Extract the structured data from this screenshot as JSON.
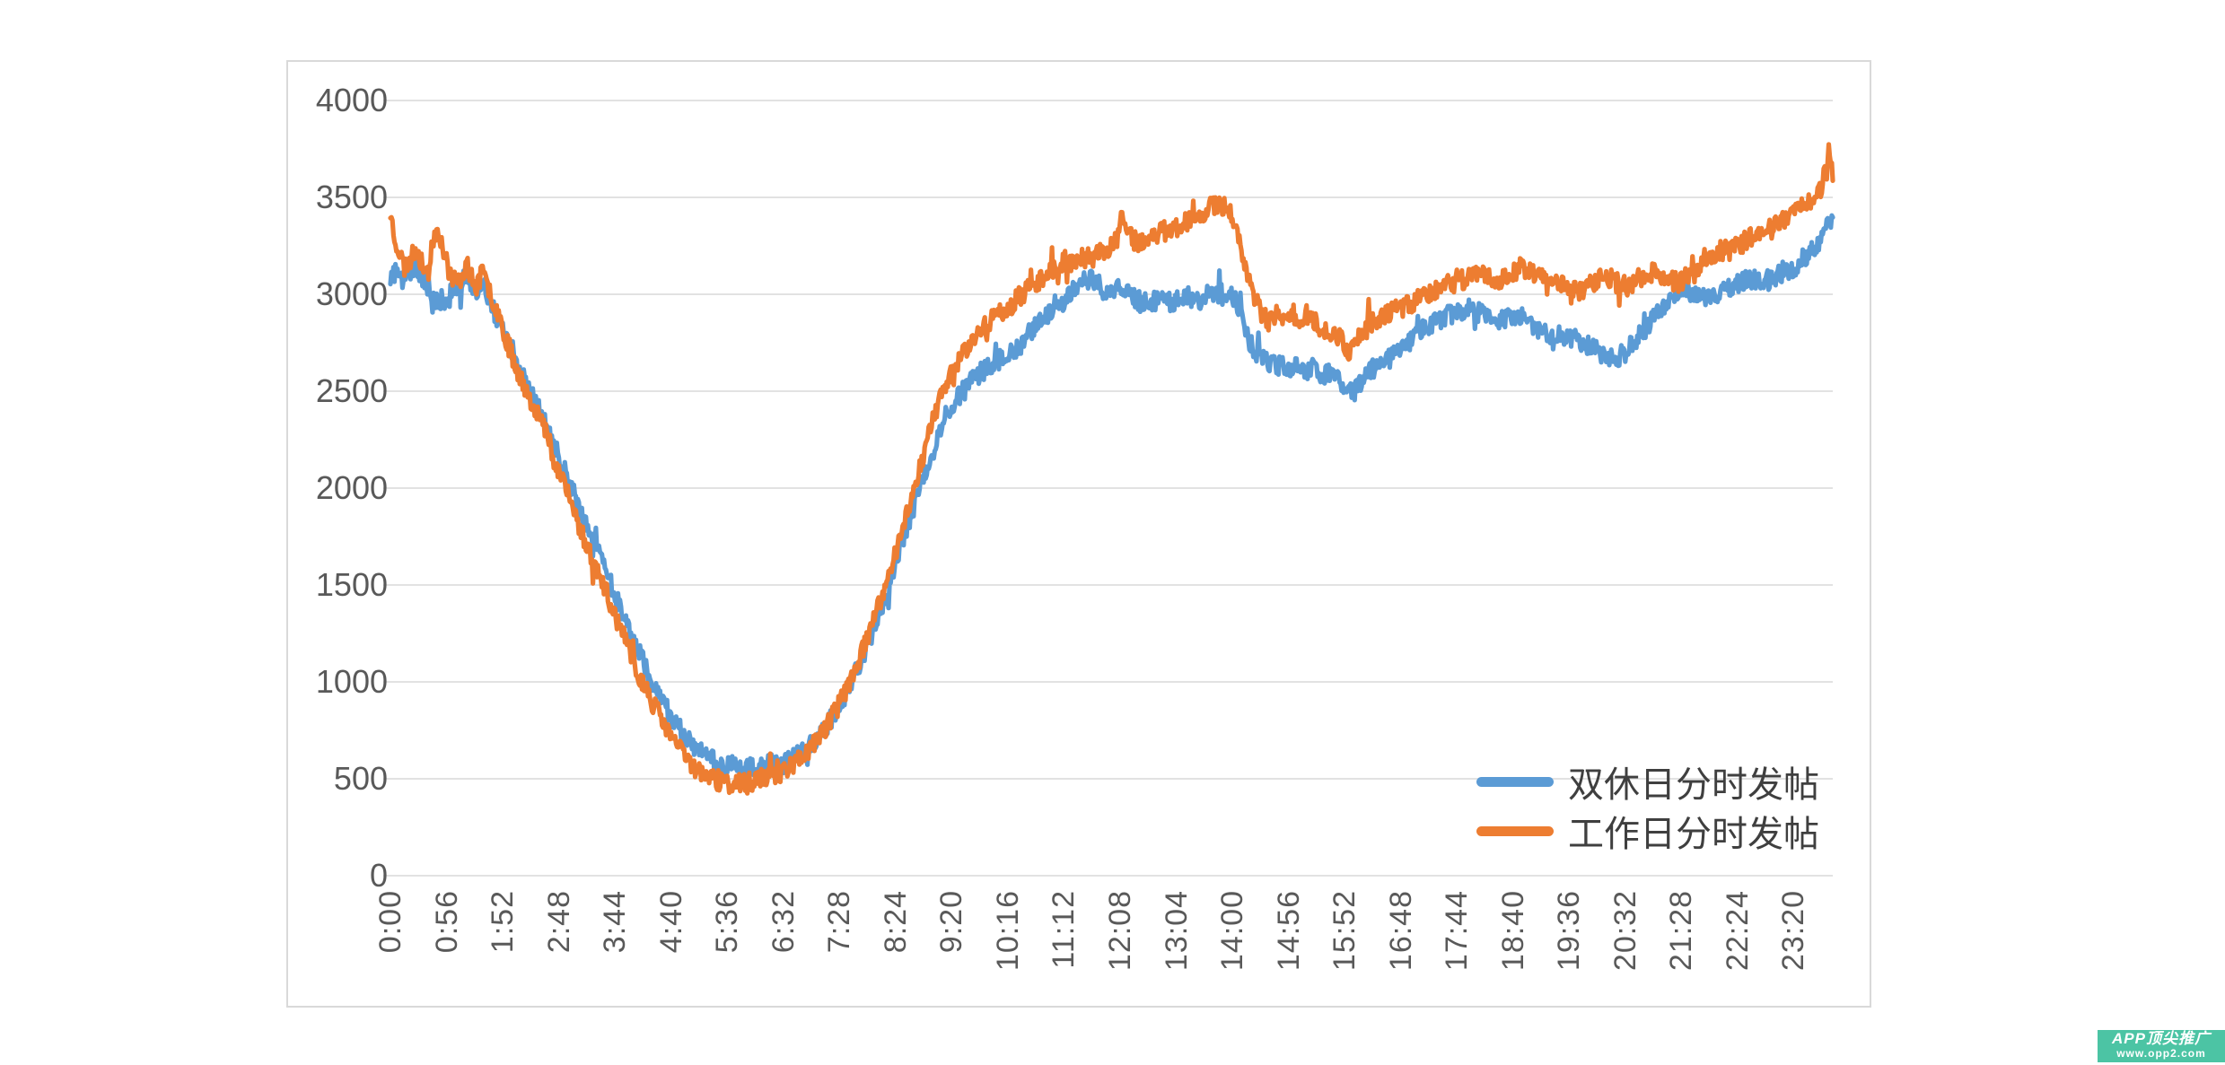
{
  "chart_data": {
    "type": "line",
    "title": "",
    "x_axis": {
      "unit": "time-of-day (minute resolution, 0:00 - 23:59)",
      "tick_interval_minutes": 56,
      "range_minutes": [
        0,
        1439
      ],
      "tick_labels": [
        "0:00",
        "0:56",
        "1:52",
        "2:48",
        "3:44",
        "4:40",
        "5:36",
        "6:32",
        "7:28",
        "8:24",
        "9:20",
        "10:16",
        "11:12",
        "12:08",
        "13:04",
        "14:00",
        "14:56",
        "15:52",
        "16:48",
        "17:44",
        "18:40",
        "19:36",
        "20:32",
        "21:28",
        "22:24",
        "23:20"
      ]
    },
    "y_axis": {
      "range": [
        0,
        4000
      ],
      "ticks": [
        0,
        500,
        1000,
        1500,
        2000,
        2500,
        3000,
        3500,
        4000
      ]
    },
    "grid": "horizontal",
    "legend_position": "inside-bottom-right",
    "sampling_note": "per-minute noisy data; anchors below trace the trend read from the image, noise_amplitude is the observed minute-to-minute jitter",
    "series": [
      {
        "name": "双休日分时发帖",
        "color": "#5B9BD5",
        "seed": 9,
        "noise_amplitude": 52,
        "anchors": [
          [
            0,
            3080
          ],
          [
            6,
            3120
          ],
          [
            12,
            3060
          ],
          [
            18,
            3110
          ],
          [
            24,
            3140
          ],
          [
            30,
            3080
          ],
          [
            36,
            3060
          ],
          [
            42,
            3000
          ],
          [
            48,
            2960
          ],
          [
            54,
            2920
          ],
          [
            60,
            3000
          ],
          [
            68,
            3060
          ],
          [
            76,
            3100
          ],
          [
            84,
            3020
          ],
          [
            92,
            3060
          ],
          [
            100,
            2960
          ],
          [
            108,
            2860
          ],
          [
            116,
            2760
          ],
          [
            126,
            2640
          ],
          [
            136,
            2530
          ],
          [
            146,
            2440
          ],
          [
            156,
            2330
          ],
          [
            166,
            2190
          ],
          [
            176,
            2060
          ],
          [
            186,
            1930
          ],
          [
            196,
            1800
          ],
          [
            208,
            1660
          ],
          [
            220,
            1500
          ],
          [
            232,
            1340
          ],
          [
            244,
            1190
          ],
          [
            256,
            1060
          ],
          [
            268,
            930
          ],
          [
            280,
            820
          ],
          [
            292,
            730
          ],
          [
            304,
            660
          ],
          [
            316,
            610
          ],
          [
            328,
            580
          ],
          [
            340,
            565
          ],
          [
            352,
            550
          ],
          [
            364,
            560
          ],
          [
            376,
            575
          ],
          [
            388,
            570
          ],
          [
            400,
            600
          ],
          [
            412,
            640
          ],
          [
            424,
            700
          ],
          [
            436,
            780
          ],
          [
            448,
            880
          ],
          [
            460,
            1000
          ],
          [
            472,
            1140
          ],
          [
            484,
            1300
          ],
          [
            496,
            1480
          ],
          [
            508,
            1670
          ],
          [
            520,
            1870
          ],
          [
            532,
            2060
          ],
          [
            544,
            2230
          ],
          [
            556,
            2380
          ],
          [
            568,
            2480
          ],
          [
            580,
            2550
          ],
          [
            592,
            2610
          ],
          [
            604,
            2650
          ],
          [
            616,
            2680
          ],
          [
            628,
            2740
          ],
          [
            640,
            2810
          ],
          [
            652,
            2870
          ],
          [
            664,
            2930
          ],
          [
            672,
            2970
          ],
          [
            684,
            3040
          ],
          [
            692,
            3070
          ],
          [
            700,
            3080
          ],
          [
            710,
            3030
          ],
          [
            720,
            3000
          ],
          [
            728,
            3050
          ],
          [
            738,
            3010
          ],
          [
            748,
            2960
          ],
          [
            758,
            2950
          ],
          [
            768,
            2990
          ],
          [
            778,
            2960
          ],
          [
            784,
            2970
          ],
          [
            794,
            3010
          ],
          [
            804,
            2960
          ],
          [
            814,
            2990
          ],
          [
            824,
            3010
          ],
          [
            834,
            2990
          ],
          [
            840,
            3000
          ],
          [
            848,
            2890
          ],
          [
            856,
            2770
          ],
          [
            864,
            2700
          ],
          [
            872,
            2660
          ],
          [
            880,
            2630
          ],
          [
            888,
            2640
          ],
          [
            896,
            2620
          ],
          [
            904,
            2650
          ],
          [
            912,
            2600
          ],
          [
            920,
            2630
          ],
          [
            928,
            2570
          ],
          [
            936,
            2600
          ],
          [
            944,
            2560
          ],
          [
            952,
            2530
          ],
          [
            960,
            2490
          ],
          [
            968,
            2550
          ],
          [
            976,
            2600
          ],
          [
            984,
            2630
          ],
          [
            992,
            2660
          ],
          [
            1000,
            2680
          ],
          [
            1008,
            2700
          ],
          [
            1020,
            2770
          ],
          [
            1032,
            2830
          ],
          [
            1044,
            2870
          ],
          [
            1056,
            2890
          ],
          [
            1064,
            2910
          ],
          [
            1076,
            2930
          ],
          [
            1088,
            2900
          ],
          [
            1100,
            2870
          ],
          [
            1112,
            2880
          ],
          [
            1120,
            2900
          ],
          [
            1132,
            2870
          ],
          [
            1144,
            2830
          ],
          [
            1156,
            2800
          ],
          [
            1168,
            2790
          ],
          [
            1176,
            2780
          ],
          [
            1188,
            2750
          ],
          [
            1200,
            2720
          ],
          [
            1212,
            2690
          ],
          [
            1224,
            2670
          ],
          [
            1232,
            2700
          ],
          [
            1244,
            2770
          ],
          [
            1256,
            2850
          ],
          [
            1268,
            2930
          ],
          [
            1280,
            3000
          ],
          [
            1288,
            3040
          ],
          [
            1300,
            3010
          ],
          [
            1312,
            2980
          ],
          [
            1324,
            3010
          ],
          [
            1336,
            3030
          ],
          [
            1344,
            3050
          ],
          [
            1356,
            3080
          ],
          [
            1368,
            3060
          ],
          [
            1380,
            3090
          ],
          [
            1392,
            3120
          ],
          [
            1400,
            3140
          ],
          [
            1410,
            3190
          ],
          [
            1420,
            3240
          ],
          [
            1428,
            3290
          ],
          [
            1434,
            3350
          ],
          [
            1439,
            3400
          ]
        ]
      },
      {
        "name": "工作日分时发帖",
        "color": "#ED7D31",
        "seed": 23,
        "noise_amplitude": 52,
        "anchors": [
          [
            0,
            3420
          ],
          [
            4,
            3300
          ],
          [
            8,
            3230
          ],
          [
            14,
            3140
          ],
          [
            20,
            3180
          ],
          [
            26,
            3240
          ],
          [
            32,
            3150
          ],
          [
            38,
            3120
          ],
          [
            44,
            3320
          ],
          [
            48,
            3340
          ],
          [
            54,
            3200
          ],
          [
            60,
            3100
          ],
          [
            68,
            3060
          ],
          [
            76,
            3160
          ],
          [
            84,
            3030
          ],
          [
            92,
            3110
          ],
          [
            100,
            3000
          ],
          [
            108,
            2900
          ],
          [
            116,
            2760
          ],
          [
            126,
            2620
          ],
          [
            136,
            2500
          ],
          [
            146,
            2400
          ],
          [
            156,
            2280
          ],
          [
            166,
            2120
          ],
          [
            176,
            1980
          ],
          [
            186,
            1840
          ],
          [
            196,
            1700
          ],
          [
            208,
            1560
          ],
          [
            220,
            1400
          ],
          [
            232,
            1240
          ],
          [
            244,
            1080
          ],
          [
            256,
            950
          ],
          [
            268,
            830
          ],
          [
            280,
            720
          ],
          [
            292,
            630
          ],
          [
            304,
            560
          ],
          [
            316,
            510
          ],
          [
            328,
            490
          ],
          [
            340,
            475
          ],
          [
            352,
            470
          ],
          [
            364,
            490
          ],
          [
            376,
            510
          ],
          [
            388,
            530
          ],
          [
            400,
            570
          ],
          [
            412,
            620
          ],
          [
            424,
            690
          ],
          [
            436,
            780
          ],
          [
            448,
            890
          ],
          [
            460,
            1020
          ],
          [
            472,
            1170
          ],
          [
            484,
            1340
          ],
          [
            496,
            1530
          ],
          [
            508,
            1740
          ],
          [
            520,
            1960
          ],
          [
            532,
            2180
          ],
          [
            544,
            2400
          ],
          [
            556,
            2550
          ],
          [
            568,
            2680
          ],
          [
            580,
            2760
          ],
          [
            592,
            2830
          ],
          [
            604,
            2890
          ],
          [
            616,
            2930
          ],
          [
            630,
            3000
          ],
          [
            644,
            3060
          ],
          [
            658,
            3130
          ],
          [
            672,
            3160
          ],
          [
            686,
            3180
          ],
          [
            700,
            3190
          ],
          [
            714,
            3230
          ],
          [
            726,
            3290
          ],
          [
            731,
            3430
          ],
          [
            736,
            3310
          ],
          [
            746,
            3260
          ],
          [
            756,
            3290
          ],
          [
            768,
            3320
          ],
          [
            780,
            3340
          ],
          [
            792,
            3370
          ],
          [
            804,
            3400
          ],
          [
            816,
            3440
          ],
          [
            826,
            3465
          ],
          [
            836,
            3440
          ],
          [
            842,
            3390
          ],
          [
            848,
            3260
          ],
          [
            854,
            3120
          ],
          [
            860,
            3010
          ],
          [
            868,
            2910
          ],
          [
            876,
            2850
          ],
          [
            884,
            2890
          ],
          [
            892,
            2860
          ],
          [
            900,
            2900
          ],
          [
            908,
            2870
          ],
          [
            916,
            2900
          ],
          [
            924,
            2850
          ],
          [
            932,
            2820
          ],
          [
            940,
            2790
          ],
          [
            948,
            2770
          ],
          [
            956,
            2710
          ],
          [
            962,
            2760
          ],
          [
            970,
            2800
          ],
          [
            978,
            2850
          ],
          [
            986,
            2880
          ],
          [
            996,
            2900
          ],
          [
            1008,
            2930
          ],
          [
            1020,
            2960
          ],
          [
            1032,
            3000
          ],
          [
            1044,
            3030
          ],
          [
            1056,
            3050
          ],
          [
            1064,
            3060
          ],
          [
            1076,
            3090
          ],
          [
            1088,
            3110
          ],
          [
            1100,
            3070
          ],
          [
            1112,
            3090
          ],
          [
            1120,
            3110
          ],
          [
            1132,
            3150
          ],
          [
            1144,
            3090
          ],
          [
            1156,
            3070
          ],
          [
            1168,
            3060
          ],
          [
            1176,
            3050
          ],
          [
            1188,
            3010
          ],
          [
            1200,
            3060
          ],
          [
            1212,
            3090
          ],
          [
            1224,
            3060
          ],
          [
            1232,
            3040
          ],
          [
            1244,
            3080
          ],
          [
            1256,
            3120
          ],
          [
            1268,
            3090
          ],
          [
            1280,
            3070
          ],
          [
            1288,
            3060
          ],
          [
            1300,
            3130
          ],
          [
            1312,
            3180
          ],
          [
            1324,
            3220
          ],
          [
            1336,
            3230
          ],
          [
            1344,
            3250
          ],
          [
            1356,
            3290
          ],
          [
            1368,
            3330
          ],
          [
            1380,
            3370
          ],
          [
            1392,
            3390
          ],
          [
            1400,
            3410
          ],
          [
            1410,
            3460
          ],
          [
            1420,
            3510
          ],
          [
            1428,
            3560
          ],
          [
            1433,
            3680
          ],
          [
            1436,
            3760
          ],
          [
            1438,
            3640
          ],
          [
            1439,
            3620
          ]
        ]
      }
    ]
  },
  "colors": {
    "axis_text": "#595959",
    "gridline": "#D9D9D9",
    "frame_border": "#D9D9D9",
    "legend_text": "#3f3f3f",
    "watermark_bg": "#4CC4A4",
    "watermark_text": "#ffffff"
  },
  "watermark": {
    "line1": "APP顶尖推广",
    "line2": "www.opp2.com"
  }
}
